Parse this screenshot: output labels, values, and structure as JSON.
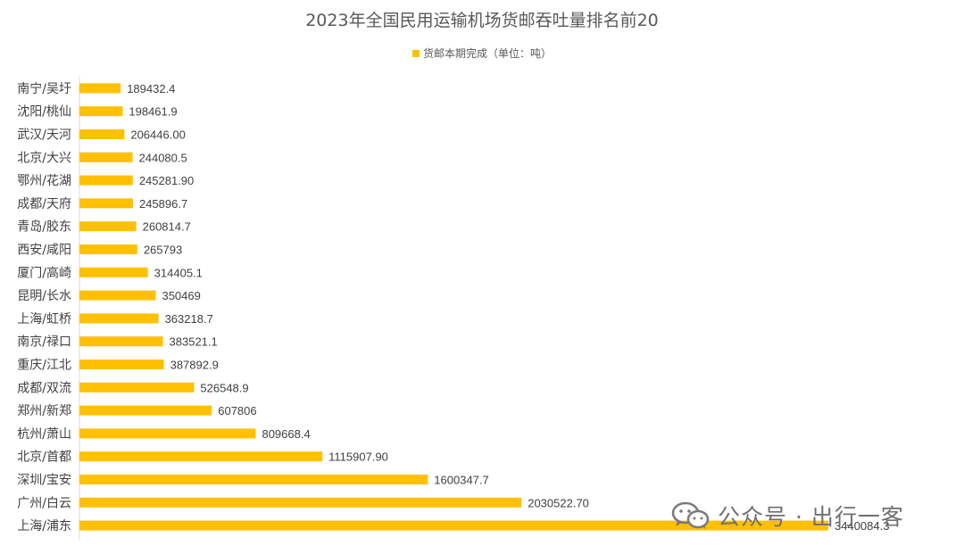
{
  "chart_data": {
    "type": "bar",
    "orientation": "horizontal",
    "title": "2023年全国民用运输机场货邮吞吐量排名前20",
    "legend_position": "top",
    "series": [
      {
        "name": "货邮本期完成（单位：吨）",
        "color": "#FFC000",
        "categories": [
          "南宁/吴圩",
          "沈阳/桃仙",
          "武汉/天河",
          "北京/大兴",
          "鄂州/花湖",
          "成都/天府",
          "青岛/胶东",
          "西安/咸阳",
          "厦门/高崎",
          "昆明/长水",
          "上海/虹桥",
          "南京/禄口",
          "重庆/江北",
          "成都/双流",
          "郑州/新郑",
          "杭州/萧山",
          "北京/首都",
          "深圳/宝安",
          "广州/白云",
          "上海/浦东"
        ],
        "values": [
          189432.4,
          198461.9,
          206446.0,
          244080.5,
          245281.9,
          245896.7,
          260814.7,
          265793,
          314405.1,
          350469,
          363218.7,
          383521.1,
          387892.9,
          526548.9,
          607806,
          809668.4,
          1115907.9,
          1600347.7,
          2030522.7,
          3440084.3
        ],
        "value_labels": [
          "189432.4",
          "198461.9",
          "206446.00",
          "244080.5",
          "245281.90",
          "245896.7",
          "260814.7",
          "265793",
          "314405.1",
          "350469",
          "363218.7",
          "383521.1",
          "387892.9",
          "526548.9",
          "607806",
          "809668.4",
          "1115907.90",
          "1600347.7",
          "2030522.70",
          "3440084.3"
        ]
      }
    ],
    "xlim": [
      0,
      3440084.3
    ],
    "grid": false
  },
  "watermark": {
    "text": "公众号 · 出行一客",
    "icon": "wechat-icon"
  }
}
